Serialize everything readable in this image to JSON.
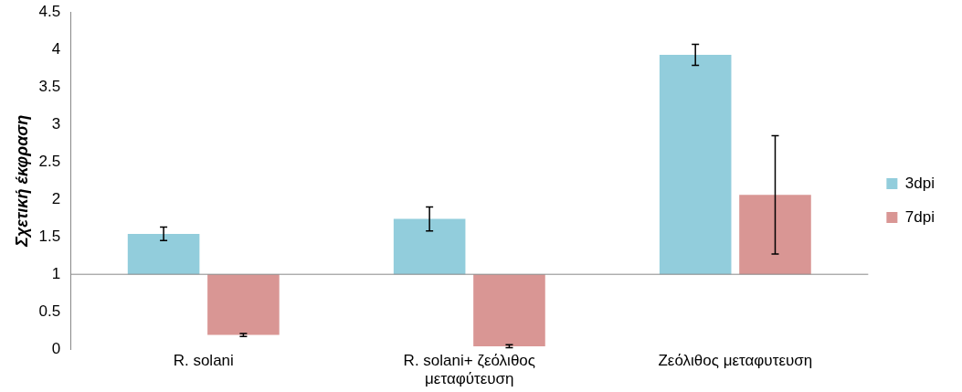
{
  "chart_data": {
    "type": "bar",
    "ylabel": "Σχετική έκφραση",
    "categories": [
      "R. solani",
      "R. solani+ ζεόλιθος μεταφύτευση",
      "Ζεόλιθος μεταφυτευση"
    ],
    "series": [
      {
        "name": "3dpi",
        "color": "#92cddc",
        "base": [
          1,
          1,
          1
        ],
        "values": [
          0.54,
          0.74,
          2.93
        ],
        "errors": [
          0.09,
          0.16,
          0.14
        ]
      },
      {
        "name": "7dpi",
        "color": "#d99694",
        "base": [
          1,
          1,
          1
        ],
        "values": [
          -0.81,
          -0.96,
          1.06
        ],
        "errors": [
          0.02,
          0.02,
          0.79
        ]
      }
    ],
    "ref_lines": [
      {
        "axis": "y",
        "value": 1,
        "color": "#888888"
      }
    ],
    "ylim": [
      0,
      4.5
    ],
    "yticks": [
      0,
      0.5,
      1,
      1.5,
      2,
      2.5,
      3,
      3.5,
      4,
      4.5
    ],
    "grid": false,
    "legend": "right"
  }
}
